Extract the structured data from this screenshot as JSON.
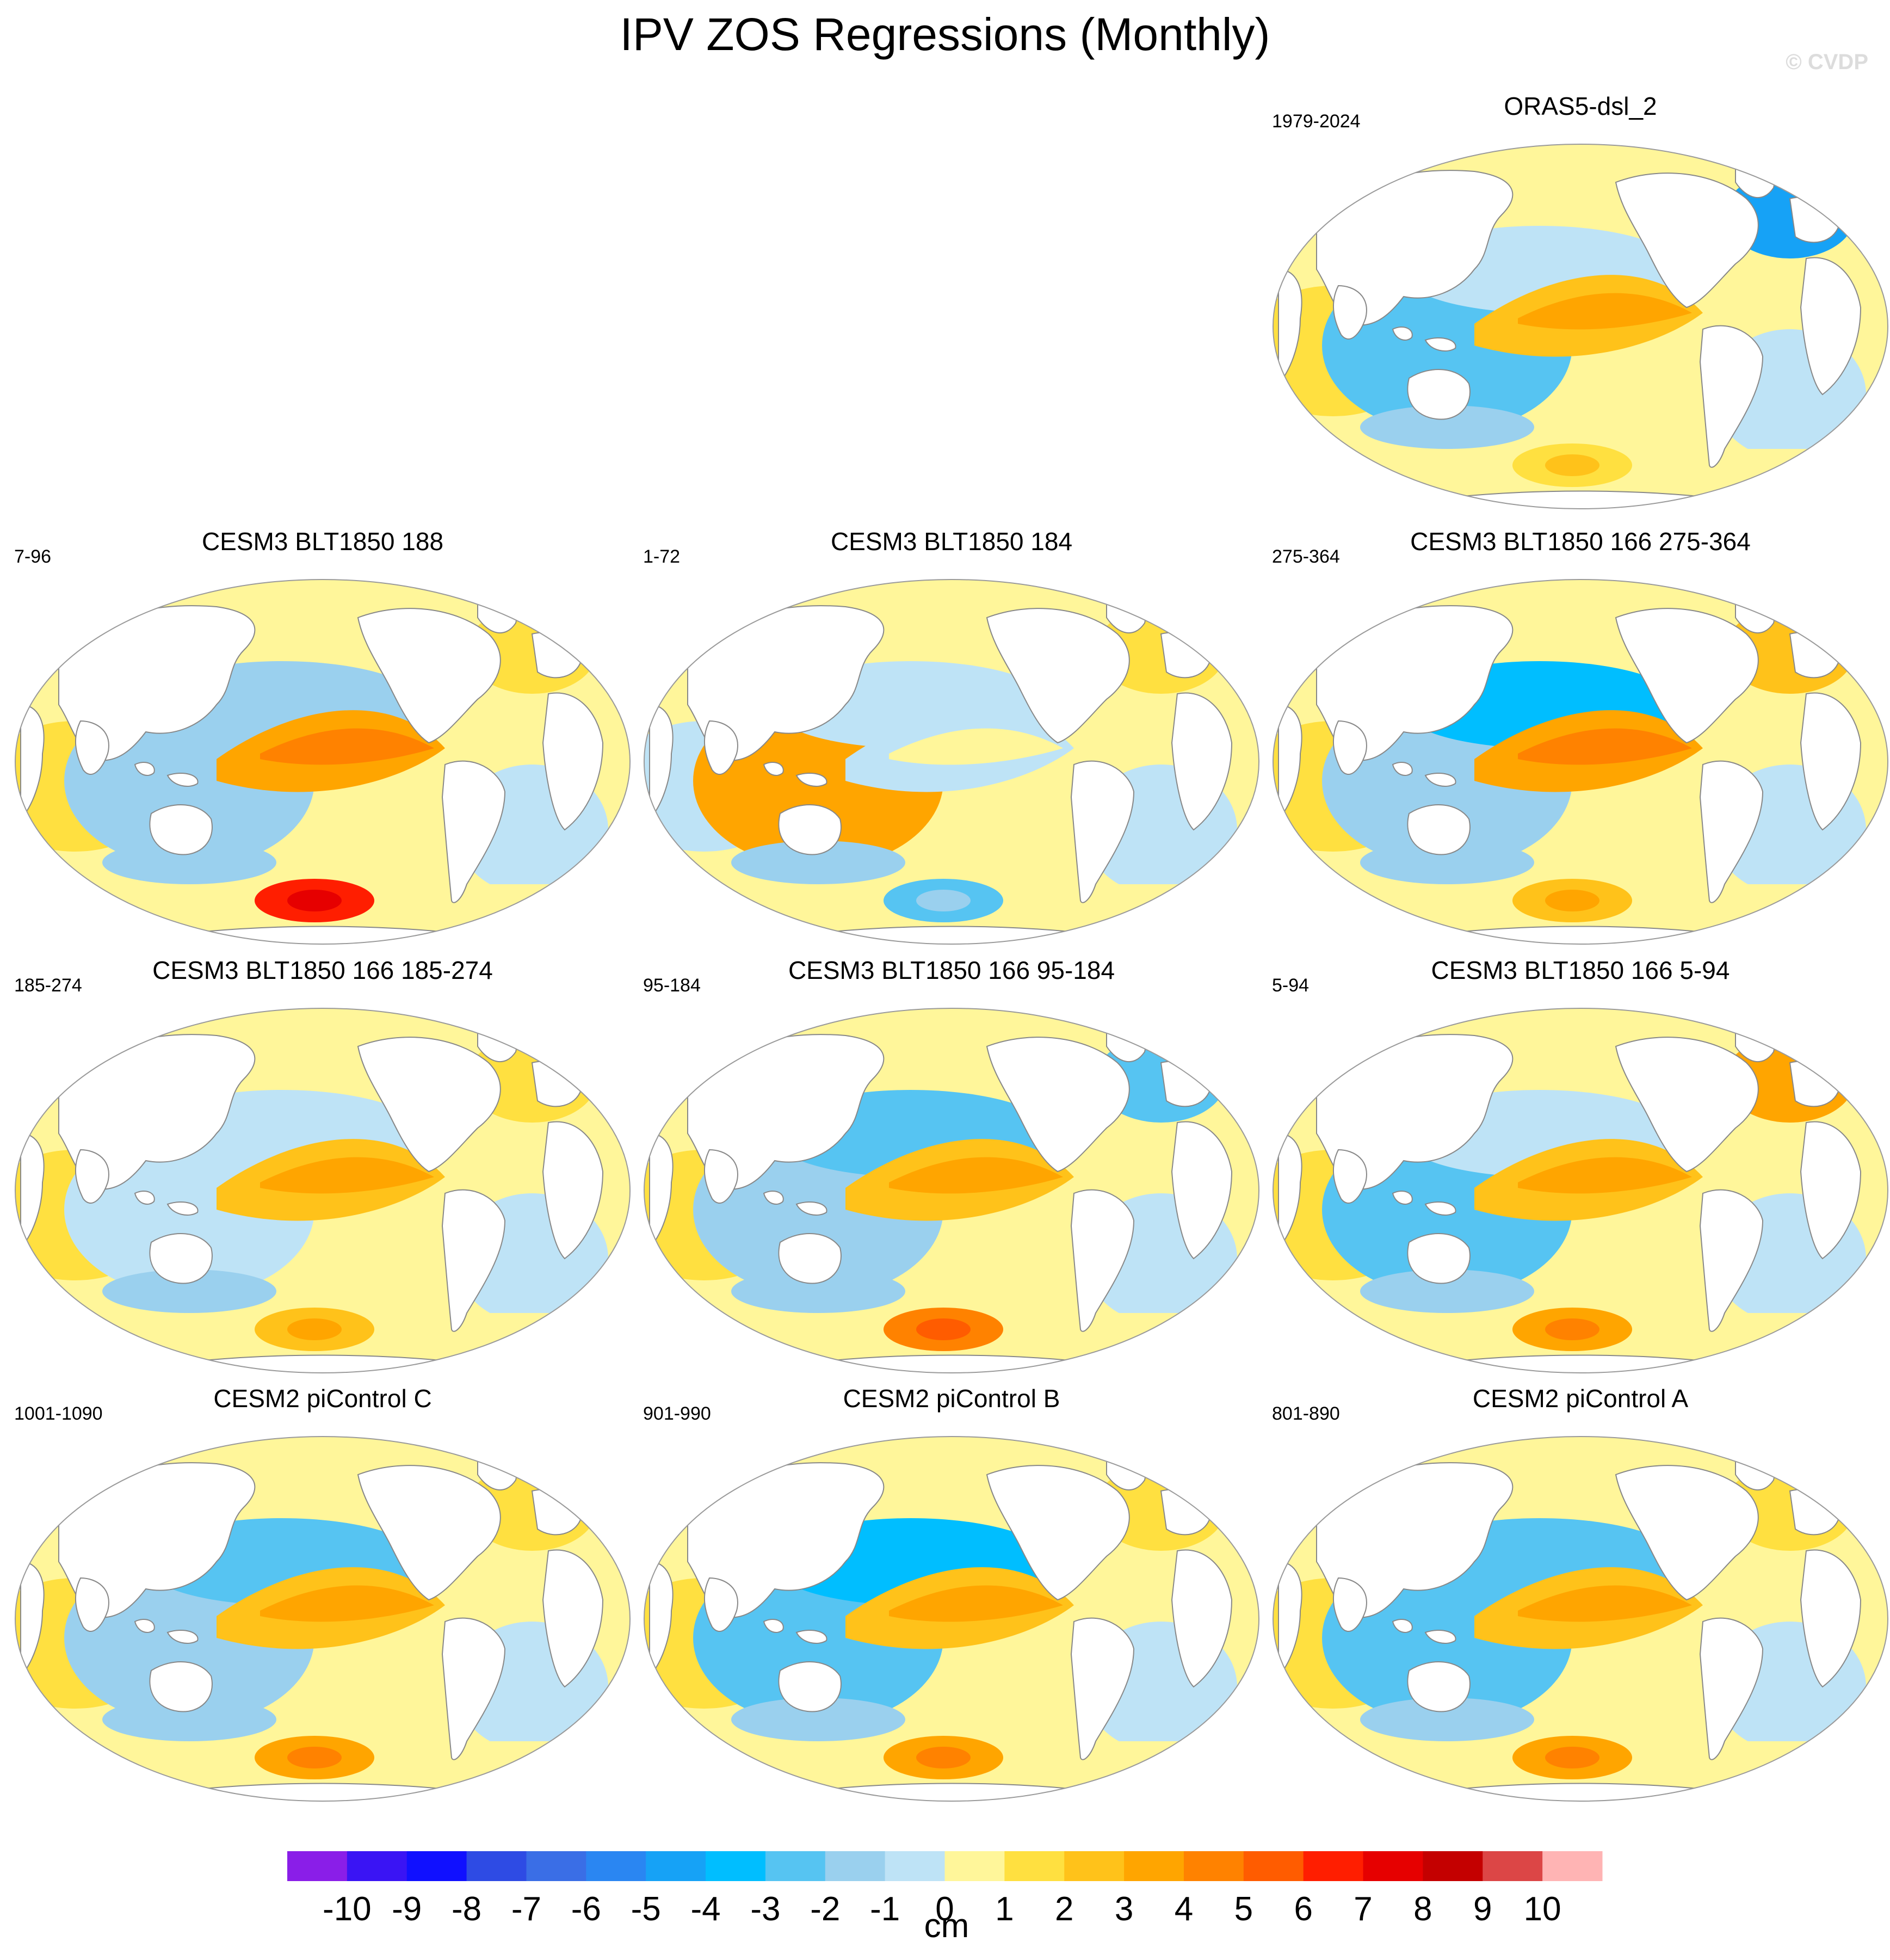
{
  "title": "IPV ZOS Regressions (Monthly)",
  "watermark": "© CVDP",
  "colors": {
    "land": "#ffffff",
    "coast": "#888888",
    "positive_main": "#fff59d",
    "positive_mid": "#ffd54f",
    "positive_high": "#ffb300",
    "negative_main": "#b9e0f5",
    "negative_mid": "#90caf0",
    "negative_high": "#3aa0ef"
  },
  "chart_data": {
    "type": "heatmap",
    "title": "IPV ZOS Regressions (Monthly)",
    "variable": "ZOS regression on IPV index",
    "units": "cm",
    "colorbar": {
      "levels": [
        -10,
        -9,
        -8,
        -7,
        -6,
        -5,
        -4,
        -3,
        -2,
        -1,
        0,
        1,
        2,
        3,
        4,
        5,
        6,
        7,
        8,
        9,
        10
      ],
      "tick_labels": [
        "-10",
        "-9",
        "-8",
        "-7",
        "-6",
        "-5",
        "-4",
        "-3",
        "-2",
        "-1",
        "0",
        "1",
        "2",
        "3",
        "4",
        "5",
        "6",
        "7",
        "8",
        "9",
        "10"
      ],
      "colors": [
        "#8a1ee8",
        "#3a14f4",
        "#1010ff",
        "#2e4be4",
        "#3a6ee6",
        "#2a86f2",
        "#16a2f6",
        "#00beff",
        "#56c4f2",
        "#9ad0ee",
        "#bee3f6",
        "#fff69a",
        "#ffe040",
        "#ffc21a",
        "#ffa500",
        "#ff8200",
        "#ff5c00",
        "#ff1e00",
        "#e60000",
        "#c40000",
        "#dc4646",
        "#ffb4b4"
      ],
      "unit_label": "cm"
    },
    "panels": [
      {
        "id": "oras5",
        "title": "ORAS5-dsl_2",
        "years": "1979-2024",
        "pattern": {
          "east_pacific_wedge": 2,
          "west_pacific": -3,
          "north_pacific": -1,
          "indian": 1,
          "southern": 1,
          "north_atlantic": -5
        }
      },
      {
        "id": "blt188",
        "title": "CESM3 BLT1850 188",
        "years": "7-96",
        "pattern": {
          "east_pacific_wedge": 3,
          "west_pacific": -2,
          "north_pacific": -2,
          "indian": 1,
          "southern": 6,
          "north_atlantic": 1
        }
      },
      {
        "id": "blt184",
        "title": "CESM3 BLT1850 184",
        "years": "1-72",
        "pattern": {
          "east_pacific_wedge": -1,
          "west_pacific": 3,
          "north_pacific": -1,
          "indian": -1,
          "southern": -3,
          "north_atlantic": 1
        }
      },
      {
        "id": "blt166c",
        "title": "CESM3 BLT1850 166 275-364",
        "years": "275-364",
        "pattern": {
          "east_pacific_wedge": 3,
          "west_pacific": -2,
          "north_pacific": -4,
          "indian": 1,
          "southern": 2,
          "north_atlantic": 2
        }
      },
      {
        "id": "blt166b",
        "title": "CESM3 BLT1850 166 185-274",
        "years": "185-274",
        "pattern": {
          "east_pacific_wedge": 2,
          "west_pacific": -1,
          "north_pacific": -1,
          "indian": 1,
          "southern": 2,
          "north_atlantic": 1
        }
      },
      {
        "id": "blt166a",
        "title": "CESM3 BLT1850 166 95-184",
        "years": "95-184",
        "pattern": {
          "east_pacific_wedge": 2,
          "west_pacific": -2,
          "north_pacific": -3,
          "indian": 1,
          "southern": 4,
          "north_atlantic": -3
        }
      },
      {
        "id": "blt166z",
        "title": "CESM3 BLT1850 166 5-94",
        "years": "5-94",
        "pattern": {
          "east_pacific_wedge": 2,
          "west_pacific": -3,
          "north_pacific": -1,
          "indian": 1,
          "southern": 3,
          "north_atlantic": 3
        }
      },
      {
        "id": "picC",
        "title": "CESM2 piControl C",
        "years": "1001-1090",
        "pattern": {
          "east_pacific_wedge": 2,
          "west_pacific": -2,
          "north_pacific": -3,
          "indian": 1,
          "southern": 3,
          "north_atlantic": 1
        }
      },
      {
        "id": "picB",
        "title": "CESM2 piControl B",
        "years": "901-990",
        "pattern": {
          "east_pacific_wedge": 2,
          "west_pacific": -3,
          "north_pacific": -4,
          "indian": 1,
          "southern": 3,
          "north_atlantic": 1
        }
      },
      {
        "id": "picA",
        "title": "CESM2 piControl A",
        "years": "801-890",
        "pattern": {
          "east_pacific_wedge": 2,
          "west_pacific": -3,
          "north_pacific": -3,
          "indian": 1,
          "southern": 3,
          "north_atlantic": 1
        }
      }
    ]
  }
}
